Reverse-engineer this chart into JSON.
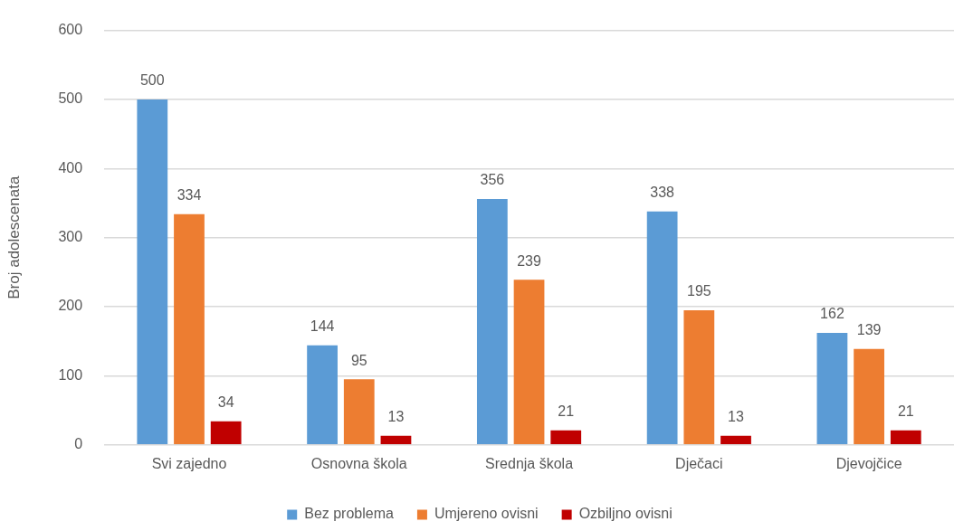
{
  "chart_data": {
    "type": "bar",
    "ylabel": "Broj adolescenata",
    "categories": [
      "Svi zajedno",
      "Osnovna škola",
      "Srednja škola",
      "Dječaci",
      "Djevojčice"
    ],
    "series": [
      {
        "name": "Bez problema",
        "color": "#5b9bd5",
        "values": [
          500,
          144,
          356,
          338,
          162
        ]
      },
      {
        "name": "Umjereno ovisni",
        "color": "#ed7d31",
        "values": [
          334,
          95,
          239,
          195,
          139
        ]
      },
      {
        "name": "Ozbiljno ovisni",
        "color": "#c00000",
        "values": [
          34,
          13,
          21,
          13,
          21
        ]
      }
    ],
    "ylim": [
      0,
      600
    ],
    "yticks": [
      0,
      100,
      200,
      300,
      400,
      500,
      600
    ],
    "grid": "y",
    "legend": "bottom",
    "data_labels": true
  }
}
